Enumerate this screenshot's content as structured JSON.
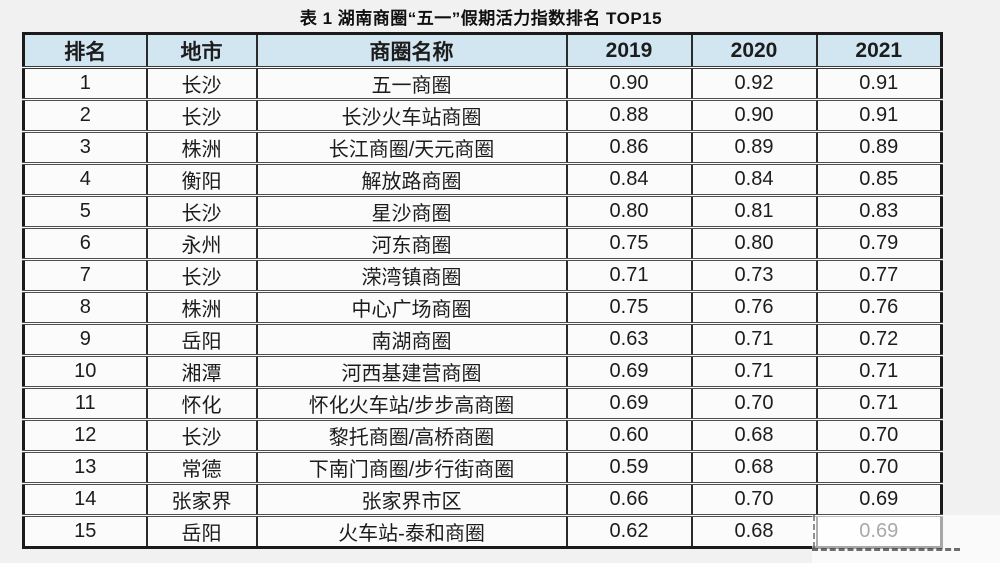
{
  "chart_data": {
    "type": "table",
    "title": "表 1 湖南商圈“五一”假期活力指数排名 TOP15",
    "columns": [
      "排名",
      "地市",
      "商圈名称",
      "2019",
      "2020",
      "2021"
    ],
    "column_keys": [
      "rank",
      "city",
      "district-name",
      "2019",
      "2020",
      "2021"
    ],
    "rows": [
      [
        "1",
        "长沙",
        "五一商圈",
        "0.90",
        "0.92",
        "0.91"
      ],
      [
        "2",
        "长沙",
        "长沙火车站商圈",
        "0.88",
        "0.90",
        "0.91"
      ],
      [
        "3",
        "株洲",
        "长江商圈/天元商圈",
        "0.86",
        "0.89",
        "0.89"
      ],
      [
        "4",
        "衡阳",
        "解放路商圈",
        "0.84",
        "0.84",
        "0.85"
      ],
      [
        "5",
        "长沙",
        "星沙商圈",
        "0.80",
        "0.81",
        "0.83"
      ],
      [
        "6",
        "永州",
        "河东商圈",
        "0.75",
        "0.80",
        "0.79"
      ],
      [
        "7",
        "长沙",
        "溁湾镇商圈",
        "0.71",
        "0.73",
        "0.77"
      ],
      [
        "8",
        "株洲",
        "中心广场商圈",
        "0.75",
        "0.76",
        "0.76"
      ],
      [
        "9",
        "岳阳",
        "南湖商圈",
        "0.63",
        "0.71",
        "0.72"
      ],
      [
        "10",
        "湘潭",
        "河西基建营商圈",
        "0.69",
        "0.71",
        "0.71"
      ],
      [
        "11",
        "怀化",
        "怀化火车站/步步高商圈",
        "0.69",
        "0.70",
        "0.71"
      ],
      [
        "12",
        "长沙",
        "黎托商圈/高桥商圈",
        "0.60",
        "0.68",
        "0.70"
      ],
      [
        "13",
        "常德",
        "下南门商圈/步行街商圈",
        "0.59",
        "0.68",
        "0.70"
      ],
      [
        "14",
        "张家界",
        "张家界市区",
        "0.66",
        "0.70",
        "0.69"
      ],
      [
        "15",
        "岳阳",
        "火车站-泰和商圈",
        "0.62",
        "0.68",
        "0.69"
      ]
    ]
  },
  "colors": {
    "page_bg": "#f1f1f1",
    "cell_bg": "#fbfbfb",
    "header_bg": "#d2e6f2",
    "border_dark": "#1a1a1a",
    "line_gray": "#4f4f4f",
    "text": "#1c1c1c"
  }
}
